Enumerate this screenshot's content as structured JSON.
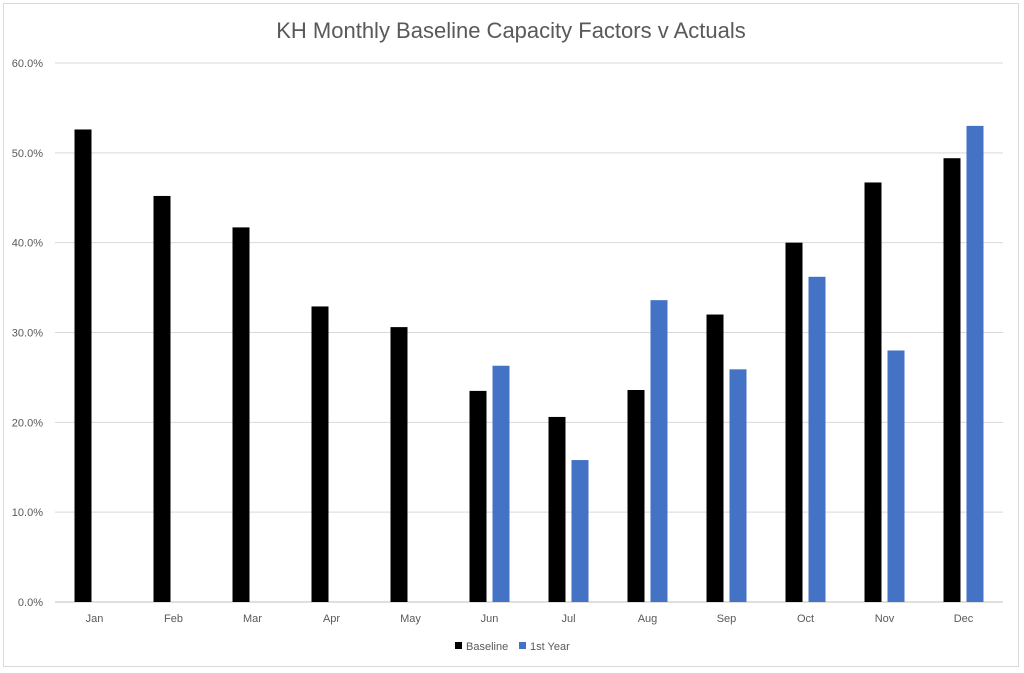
{
  "chart_data": {
    "type": "bar",
    "title": "KH Monthly Baseline Capacity Factors v Actuals",
    "xlabel": "",
    "ylabel": "",
    "categories": [
      "Jan",
      "Feb",
      "Mar",
      "Apr",
      "May",
      "Jun",
      "Jul",
      "Aug",
      "Sep",
      "Oct",
      "Nov",
      "Dec"
    ],
    "series": [
      {
        "name": "Baseline",
        "color": "#000000",
        "values": [
          52.6,
          45.2,
          41.7,
          32.9,
          30.6,
          23.5,
          20.6,
          23.6,
          32.0,
          40.0,
          46.7,
          49.4
        ]
      },
      {
        "name": "1st Year",
        "color": "#4472C4",
        "values": [
          null,
          null,
          null,
          null,
          null,
          26.3,
          15.8,
          33.6,
          25.9,
          36.2,
          28.0,
          53.0
        ]
      }
    ],
    "ylim": [
      0,
      60
    ],
    "yticks": [
      "0.0%",
      "10.0%",
      "20.0%",
      "30.0%",
      "40.0%",
      "50.0%",
      "60.0%"
    ],
    "grid": true,
    "legend": "bottom"
  }
}
